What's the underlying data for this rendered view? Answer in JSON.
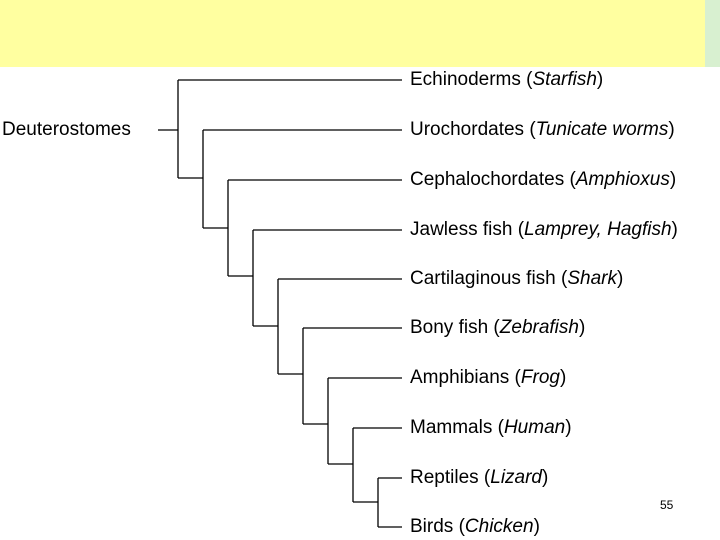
{
  "root": {
    "label": "Deuterostomes"
  },
  "leaves": [
    {
      "segments": [
        "Echinoderms (",
        "Starfish",
        ")"
      ]
    },
    {
      "segments": [
        "Urochordates (",
        "Tunicate worms",
        ")"
      ]
    },
    {
      "segments": [
        "Cephalochordates (",
        "Amphioxus",
        ")"
      ]
    },
    {
      "segments": [
        "Jawless fish (",
        "Lamprey, Hagfish",
        ")"
      ]
    },
    {
      "segments": [
        "Cartilaginous fish (",
        "Shark",
        ")"
      ]
    },
    {
      "segments": [
        "Bony fish (",
        "Zebrafish",
        ")"
      ]
    },
    {
      "segments": [
        "Amphibians (",
        "Frog",
        ")"
      ]
    },
    {
      "segments": [
        "Mammals (",
        "Human",
        ")"
      ]
    },
    {
      "segments": [
        "Reptiles (",
        "Lizard",
        ")"
      ]
    },
    {
      "segments": [
        "Birds (",
        "Chicken",
        ")"
      ]
    }
  ],
  "footer": {
    "page_number": "55"
  }
}
